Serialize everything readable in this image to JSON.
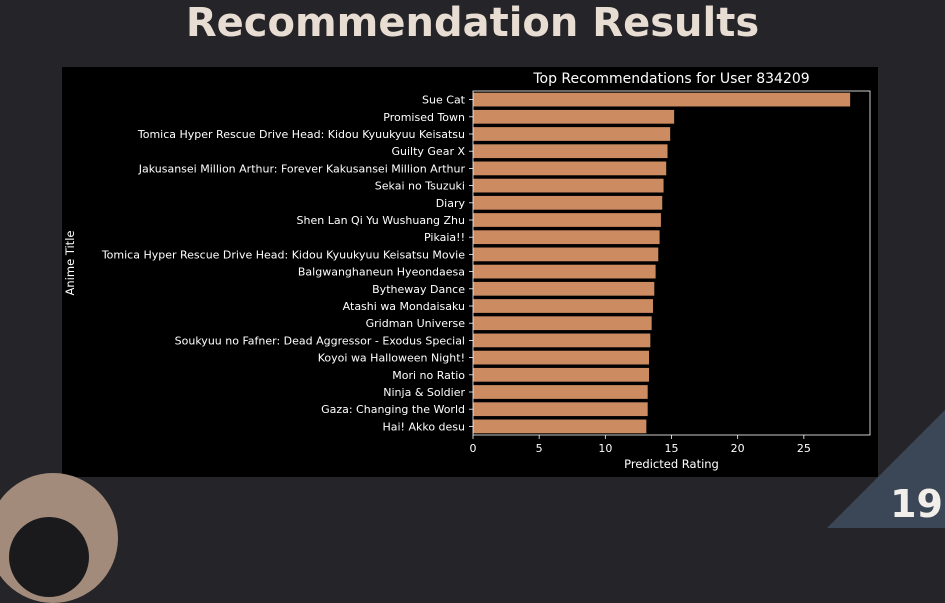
{
  "slide": {
    "title": "Recommendation Results",
    "page_number": "19"
  },
  "colors": {
    "background": "#252428",
    "plot_background": "#000000",
    "bar": "#cd8b62",
    "text": "#ffffff",
    "title_text": "#e8ddd2",
    "circle_accent": "#a38b7b",
    "triangle_accent": "#3b4657"
  },
  "chart_data": {
    "type": "bar",
    "orientation": "horizontal",
    "title": "Top Recommendations for User 834209",
    "xlabel": "Predicted Rating",
    "ylabel": "Anime Title",
    "xlim": [
      0,
      30
    ],
    "xticks": [
      0,
      5,
      10,
      15,
      20,
      25
    ],
    "grid": false,
    "categories": [
      "Sue Cat",
      "Promised Town",
      "Tomica Hyper Rescue Drive Head: Kidou Kyuukyuu Keisatsu",
      "Guilty Gear X",
      "Jakusansei Million Arthur: Forever Kakusansei Million Arthur",
      "Sekai no Tsuzuki",
      "Diary",
      "Shen Lan Qi Yu Wushuang Zhu",
      "Pikaia!!",
      "Tomica Hyper Rescue Drive Head: Kidou Kyuukyuu Keisatsu Movie",
      "Balgwanghaneun Hyeondaesa",
      "Bytheway Dance",
      "Atashi wa Mondaisaku",
      "Gridman Universe",
      "Soukyuu no Fafner: Dead Aggressor - Exodus Special",
      "Koyoi wa Halloween Night!",
      "Mori no Ratio",
      "Ninja & Soldier",
      "Gaza: Changing the World",
      "Hai! Akko desu"
    ],
    "values": [
      28.5,
      15.2,
      14.9,
      14.7,
      14.6,
      14.4,
      14.3,
      14.2,
      14.1,
      14.0,
      13.8,
      13.7,
      13.6,
      13.5,
      13.4,
      13.3,
      13.3,
      13.2,
      13.2,
      13.1
    ]
  }
}
